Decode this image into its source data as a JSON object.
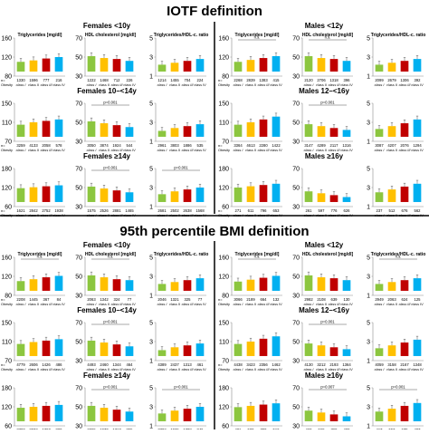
{
  "colors": {
    "class1": "#8CC63F",
    "class2": "#FFC000",
    "class3": "#C00000",
    "class4": "#00B0F0",
    "separator": "#000000",
    "axis": "#8c8c8c",
    "text": "#000000"
  },
  "class_labels": [
    "class I",
    "class II",
    "class III",
    "class IV"
  ],
  "obesity_label": "Obesity",
  "sections": [
    {
      "title": "IOTF definition",
      "groups": [
        {
          "label": "Females <10y",
          "side": "left",
          "row": 0
        },
        {
          "label": "Females 10–<14y",
          "side": "left",
          "row": 1
        },
        {
          "label": "Females ≥14y",
          "side": "left",
          "row": 2
        },
        {
          "label": "Males <12y",
          "side": "right",
          "row": 0
        },
        {
          "label": "Males 12–<16y",
          "side": "right",
          "row": 1
        },
        {
          "label": "Males ≥16y",
          "side": "right",
          "row": 2
        }
      ]
    },
    {
      "title": "95th percentile BMI definition",
      "groups": [
        {
          "label": "Females <10y",
          "side": "left",
          "row": 0
        },
        {
          "label": "Females 10–<14y",
          "side": "left",
          "row": 1
        },
        {
          "label": "Females ≥14y",
          "side": "left",
          "row": 2
        },
        {
          "label": "Males <12y",
          "side": "right",
          "row": 0
        },
        {
          "label": "Males 12–<16y",
          "side": "right",
          "row": 1
        },
        {
          "label": "Males ≥16y",
          "side": "right",
          "row": 2
        }
      ]
    }
  ],
  "chart_data": [
    {
      "section": 0,
      "side": "left",
      "row": 0,
      "col": 0,
      "type": "bar",
      "title": "Triglycerides [mg/dl]",
      "yticks": [
        "80",
        "120",
        "160"
      ],
      "ylim": [
        80,
        160
      ],
      "values": [
        110,
        113,
        117,
        120
      ],
      "n": [
        "1330",
        "1596",
        "777",
        "216"
      ],
      "annotation": ""
    },
    {
      "section": 0,
      "side": "left",
      "row": 0,
      "col": 1,
      "type": "bar",
      "title": "HDL cholesterol [mg/dl]",
      "yticks": [
        "30",
        "50",
        "70"
      ],
      "ylim": [
        30,
        70
      ],
      "values": [
        51,
        49,
        48,
        46
      ],
      "n": [
        "1222",
        "1468",
        "712",
        "226"
      ],
      "annotation": ""
    },
    {
      "section": 0,
      "side": "left",
      "row": 0,
      "col": 2,
      "type": "bar",
      "title": "Triglycerides/HDL-c. ratio",
      "yticks": [
        "1",
        "3",
        "5"
      ],
      "ylim": [
        1,
        5
      ],
      "values": [
        2.2,
        2.4,
        2.6,
        2.8
      ],
      "n": [
        "1214",
        "1455",
        "704",
        "224"
      ],
      "annotation": ""
    },
    {
      "section": 0,
      "side": "right",
      "row": 0,
      "col": 0,
      "type": "bar",
      "title": "Triglycerides [mg/dl]",
      "yticks": [
        "80",
        "120",
        "160"
      ],
      "ylim": [
        80,
        160
      ],
      "values": [
        110,
        114,
        118,
        122
      ],
      "n": [
        "2268",
        "2839",
        "1383",
        "415"
      ],
      "annotation": "n.s."
    },
    {
      "section": 0,
      "side": "right",
      "row": 0,
      "col": 1,
      "type": "bar",
      "title": "HDL cholesterol [mg/dl]",
      "yticks": [
        "30",
        "50",
        "70"
      ],
      "ylim": [
        30,
        70
      ],
      "values": [
        51,
        49,
        48,
        46
      ],
      "n": [
        "2120",
        "2706",
        "1318",
        "396"
      ],
      "annotation": "n.s."
    },
    {
      "section": 0,
      "side": "right",
      "row": 0,
      "col": 2,
      "type": "bar",
      "title": "Triglycerides/HDL-c. ratio",
      "yticks": [
        "1",
        "3",
        "5"
      ],
      "ylim": [
        1,
        5
      ],
      "values": [
        2.2,
        2.4,
        2.6,
        2.8
      ],
      "n": [
        "2099",
        "2679",
        "1306",
        "392"
      ],
      "annotation": ""
    },
    {
      "section": 0,
      "side": "left",
      "row": 1,
      "col": 0,
      "type": "bar",
      "title": "",
      "yticks": [
        "70",
        "110",
        "150"
      ],
      "ylim": [
        70,
        150
      ],
      "values": [
        105,
        110,
        113,
        116
      ],
      "n": [
        "3259",
        "4133",
        "2058",
        "578"
      ],
      "annotation": ""
    },
    {
      "section": 0,
      "side": "left",
      "row": 1,
      "col": 1,
      "type": "bar",
      "title": "",
      "yticks": [
        "30",
        "50",
        "70"
      ],
      "ylim": [
        30,
        70
      ],
      "values": [
        51,
        49,
        47,
        45
      ],
      "n": [
        "3050",
        "3874",
        "1924",
        "544"
      ],
      "annotation": "p=0.001"
    },
    {
      "section": 0,
      "side": "left",
      "row": 1,
      "col": 2,
      "type": "bar",
      "title": "",
      "yticks": [
        "1",
        "3",
        "5"
      ],
      "ylim": [
        1,
        5
      ],
      "values": [
        2.1,
        2.4,
        2.6,
        2.8
      ],
      "n": [
        "2961",
        "3803",
        "1886",
        "535"
      ],
      "annotation": ""
    },
    {
      "section": 0,
      "side": "right",
      "row": 1,
      "col": 0,
      "type": "bar",
      "title": "",
      "yticks": [
        "70",
        "110",
        "150"
      ],
      "ylim": [
        70,
        150
      ],
      "values": [
        105,
        110,
        116,
        122
      ],
      "n": [
        "3364",
        "4613",
        "2280",
        "1422"
      ],
      "annotation": ""
    },
    {
      "section": 0,
      "side": "right",
      "row": 1,
      "col": 1,
      "type": "bar",
      "title": "",
      "yticks": [
        "30",
        "50",
        "70"
      ],
      "ylim": [
        30,
        70
      ],
      "values": [
        48,
        46,
        44,
        42
      ],
      "n": [
        "3147",
        "4289",
        "2117",
        "1316"
      ],
      "annotation": "p=0.001"
    },
    {
      "section": 0,
      "side": "right",
      "row": 1,
      "col": 2,
      "type": "bar",
      "title": "",
      "yticks": [
        "1",
        "3",
        "5"
      ],
      "ylim": [
        1,
        5
      ],
      "values": [
        2.3,
        2.6,
        2.9,
        3.3
      ],
      "n": [
        "3087",
        "4207",
        "2076",
        "1294"
      ],
      "annotation": ""
    },
    {
      "section": 0,
      "side": "left",
      "row": 2,
      "col": 0,
      "type": "bar",
      "title": "",
      "yticks": [
        "60",
        "120",
        "180"
      ],
      "ylim": [
        60,
        180
      ],
      "values": [
        118,
        121,
        124,
        127
      ],
      "n": [
        "1621",
        "2842",
        "2752",
        "1938"
      ],
      "annotation": ""
    },
    {
      "section": 0,
      "side": "left",
      "row": 2,
      "col": 1,
      "type": "bar",
      "title": "",
      "yticks": [
        "30",
        "50",
        "70"
      ],
      "ylim": [
        30,
        70
      ],
      "values": [
        51,
        49,
        47,
        45
      ],
      "n": [
        "1575",
        "2526",
        "2881",
        "1465"
      ],
      "annotation": "p=0.001"
    },
    {
      "section": 0,
      "side": "left",
      "row": 2,
      "col": 2,
      "type": "bar",
      "title": "",
      "yticks": [
        "1",
        "3",
        "5"
      ],
      "ylim": [
        1,
        5
      ],
      "values": [
        2.3,
        2.6,
        2.8,
        3.0
      ],
      "n": [
        "2681",
        "2502",
        "2638",
        "1568"
      ],
      "annotation": "p=0.001"
    },
    {
      "section": 0,
      "side": "right",
      "row": 2,
      "col": 0,
      "type": "bar",
      "title": "",
      "yticks": [
        "60",
        "120",
        "180"
      ],
      "ylim": [
        60,
        180
      ],
      "values": [
        120,
        124,
        128,
        132
      ],
      "n": [
        "271",
        "611",
        "796",
        "653"
      ],
      "annotation": ""
    },
    {
      "section": 0,
      "side": "right",
      "row": 2,
      "col": 1,
      "type": "bar",
      "title": "",
      "yticks": [
        "30",
        "50",
        "70"
      ],
      "ylim": [
        30,
        70
      ],
      "values": [
        46,
        44,
        42,
        40
      ],
      "n": [
        "261",
        "597",
        "776",
        "626"
      ],
      "annotation": ""
    },
    {
      "section": 0,
      "side": "right",
      "row": 2,
      "col": 2,
      "type": "bar",
      "title": "",
      "yticks": [
        "1",
        "3",
        "5"
      ],
      "ylim": [
        1,
        5
      ],
      "values": [
        2.5,
        2.8,
        3.1,
        3.4
      ],
      "n": [
        "237",
        "512",
        "676",
        "562"
      ],
      "annotation": ""
    },
    {
      "section": 1,
      "side": "left",
      "row": 0,
      "col": 0,
      "type": "bar",
      "title": "Triglycerides [mg/dl]",
      "yticks": [
        "80",
        "120",
        "160"
      ],
      "ylim": [
        80,
        160
      ],
      "values": [
        110,
        114,
        118,
        121
      ],
      "n": [
        "2208",
        "1445",
        "367",
        "84"
      ],
      "annotation": "n.s."
    },
    {
      "section": 1,
      "side": "left",
      "row": 0,
      "col": 1,
      "type": "bar",
      "title": "HDL cholesterol [mg/dl]",
      "yticks": [
        "30",
        "50",
        "70"
      ],
      "ylim": [
        30,
        70
      ],
      "values": [
        51,
        49,
        47,
        46
      ],
      "n": [
        "2063",
        "1342",
        "324",
        "77"
      ],
      "annotation": "n.s."
    },
    {
      "section": 1,
      "side": "left",
      "row": 0,
      "col": 2,
      "type": "bar",
      "title": "Triglycerides/HDL-c. ratio",
      "yticks": [
        "1",
        "3",
        "5"
      ],
      "ylim": [
        1,
        5
      ],
      "values": [
        2.2,
        2.4,
        2.6,
        2.8
      ],
      "n": [
        "2046",
        "1321",
        "325",
        "77"
      ],
      "annotation": ""
    },
    {
      "section": 1,
      "side": "right",
      "row": 0,
      "col": 0,
      "type": "bar",
      "title": "Triglycerides [mg/dl]",
      "yticks": [
        "80",
        "120",
        "160"
      ],
      "ylim": [
        80,
        160
      ],
      "values": [
        109,
        113,
        117,
        121
      ],
      "n": [
        "3066",
        "2189",
        "664",
        "132"
      ],
      "annotation": "n.s."
    },
    {
      "section": 1,
      "side": "right",
      "row": 0,
      "col": 1,
      "type": "bar",
      "title": "HDL cholesterol [mg/dl]",
      "yticks": [
        "30",
        "50",
        "70"
      ],
      "ylim": [
        30,
        70
      ],
      "values": [
        51,
        49,
        48,
        46
      ],
      "n": [
        "2982",
        "2108",
        "639",
        "130"
      ],
      "annotation": ""
    },
    {
      "section": 1,
      "side": "right",
      "row": 0,
      "col": 2,
      "type": "bar",
      "title": "Triglycerides/HDL-c. ratio",
      "yticks": [
        "1",
        "3",
        "5"
      ],
      "ylim": [
        1,
        5
      ],
      "values": [
        2.2,
        2.4,
        2.6,
        2.8
      ],
      "n": [
        "2949",
        "2063",
        "624",
        "125"
      ],
      "annotation": "n.s."
    },
    {
      "section": 1,
      "side": "left",
      "row": 1,
      "col": 0,
      "type": "bar",
      "title": "",
      "yticks": [
        "70",
        "110",
        "150"
      ],
      "ylim": [
        70,
        150
      ],
      "values": [
        105,
        109,
        112,
        115
      ],
      "n": [
        "4779",
        "2606",
        "1426",
        "486"
      ],
      "annotation": ""
    },
    {
      "section": 1,
      "side": "left",
      "row": 1,
      "col": 1,
      "type": "bar",
      "title": "",
      "yticks": [
        "30",
        "50",
        "70"
      ],
      "ylim": [
        30,
        70
      ],
      "values": [
        51,
        49,
        47,
        45
      ],
      "n": [
        "4493",
        "2460",
        "1344",
        "464"
      ],
      "annotation": "p=0.001"
    },
    {
      "section": 1,
      "side": "left",
      "row": 1,
      "col": 2,
      "type": "bar",
      "title": "",
      "yticks": [
        "1",
        "3",
        "5"
      ],
      "ylim": [
        1,
        5
      ],
      "values": [
        2.1,
        2.4,
        2.6,
        2.8
      ],
      "n": [
        "4389",
        "2437",
        "1313",
        "461"
      ],
      "annotation": ""
    },
    {
      "section": 1,
      "side": "right",
      "row": 1,
      "col": 0,
      "type": "bar",
      "title": "",
      "yticks": [
        "70",
        "110",
        "150"
      ],
      "ylim": [
        70,
        150
      ],
      "values": [
        105,
        110,
        116,
        121
      ],
      "n": [
        "4438",
        "3423",
        "2356",
        "1462"
      ],
      "annotation": ""
    },
    {
      "section": 1,
      "side": "right",
      "row": 1,
      "col": 1,
      "type": "bar",
      "title": "",
      "yticks": [
        "30",
        "50",
        "70"
      ],
      "ylim": [
        30,
        70
      ],
      "values": [
        48,
        46,
        44,
        42
      ],
      "n": [
        "4130",
        "3212",
        "2193",
        "1364"
      ],
      "annotation": "p=0.001"
    },
    {
      "section": 1,
      "side": "right",
      "row": 1,
      "col": 2,
      "type": "bar",
      "title": "",
      "yticks": [
        "1",
        "3",
        "5"
      ],
      "ylim": [
        1,
        5
      ],
      "values": [
        2.3,
        2.6,
        2.9,
        3.2
      ],
      "n": [
        "4059",
        "3158",
        "2167",
        "1348"
      ],
      "annotation": ""
    },
    {
      "section": 1,
      "side": "left",
      "row": 2,
      "col": 0,
      "type": "bar",
      "title": "",
      "yticks": [
        "60",
        "120",
        "180"
      ],
      "ylim": [
        60,
        180
      ],
      "values": [
        117,
        120,
        123,
        126
      ],
      "n": [
        "2790",
        "2032",
        "1767",
        "880"
      ],
      "annotation": ""
    },
    {
      "section": 1,
      "side": "left",
      "row": 2,
      "col": 1,
      "type": "bar",
      "title": "",
      "yticks": [
        "30",
        "50",
        "70"
      ],
      "ylim": [
        30,
        70
      ],
      "values": [
        51,
        49,
        47,
        45
      ],
      "n": [
        "2725",
        "1970",
        "1717",
        "855"
      ],
      "annotation": "p=0.001"
    },
    {
      "section": 1,
      "side": "left",
      "row": 2,
      "col": 2,
      "type": "bar",
      "title": "",
      "yticks": [
        "1",
        "3",
        "5"
      ],
      "ylim": [
        1,
        5
      ],
      "values": [
        2.3,
        2.6,
        2.8,
        3.0
      ],
      "n": [
        "2702",
        "1925",
        "1708",
        "846"
      ],
      "annotation": "p=0.001"
    },
    {
      "section": 1,
      "side": "right",
      "row": 2,
      "col": 0,
      "type": "bar",
      "title": "",
      "yticks": [
        "60",
        "120",
        "180"
      ],
      "ylim": [
        60,
        180
      ],
      "values": [
        119,
        123,
        127,
        131
      ],
      "n": [
        "481",
        "580",
        "780",
        "512"
      ],
      "annotation": ""
    },
    {
      "section": 1,
      "side": "right",
      "row": 2,
      "col": 1,
      "type": "bar",
      "title": "",
      "yticks": [
        "30",
        "50",
        "70"
      ],
      "ylim": [
        30,
        70
      ],
      "values": [
        46,
        44,
        42,
        40
      ],
      "n": [
        "460",
        "568",
        "769",
        "499"
      ],
      "annotation": "p=0.007"
    },
    {
      "section": 1,
      "side": "right",
      "row": 2,
      "col": 2,
      "type": "bar",
      "title": "",
      "yticks": [
        "1",
        "3",
        "5"
      ],
      "ylim": [
        1,
        5
      ],
      "values": [
        2.5,
        2.8,
        3.1,
        3.4
      ],
      "n": [
        "417",
        "553",
        "679",
        "487"
      ],
      "annotation": "p=0.001"
    }
  ]
}
